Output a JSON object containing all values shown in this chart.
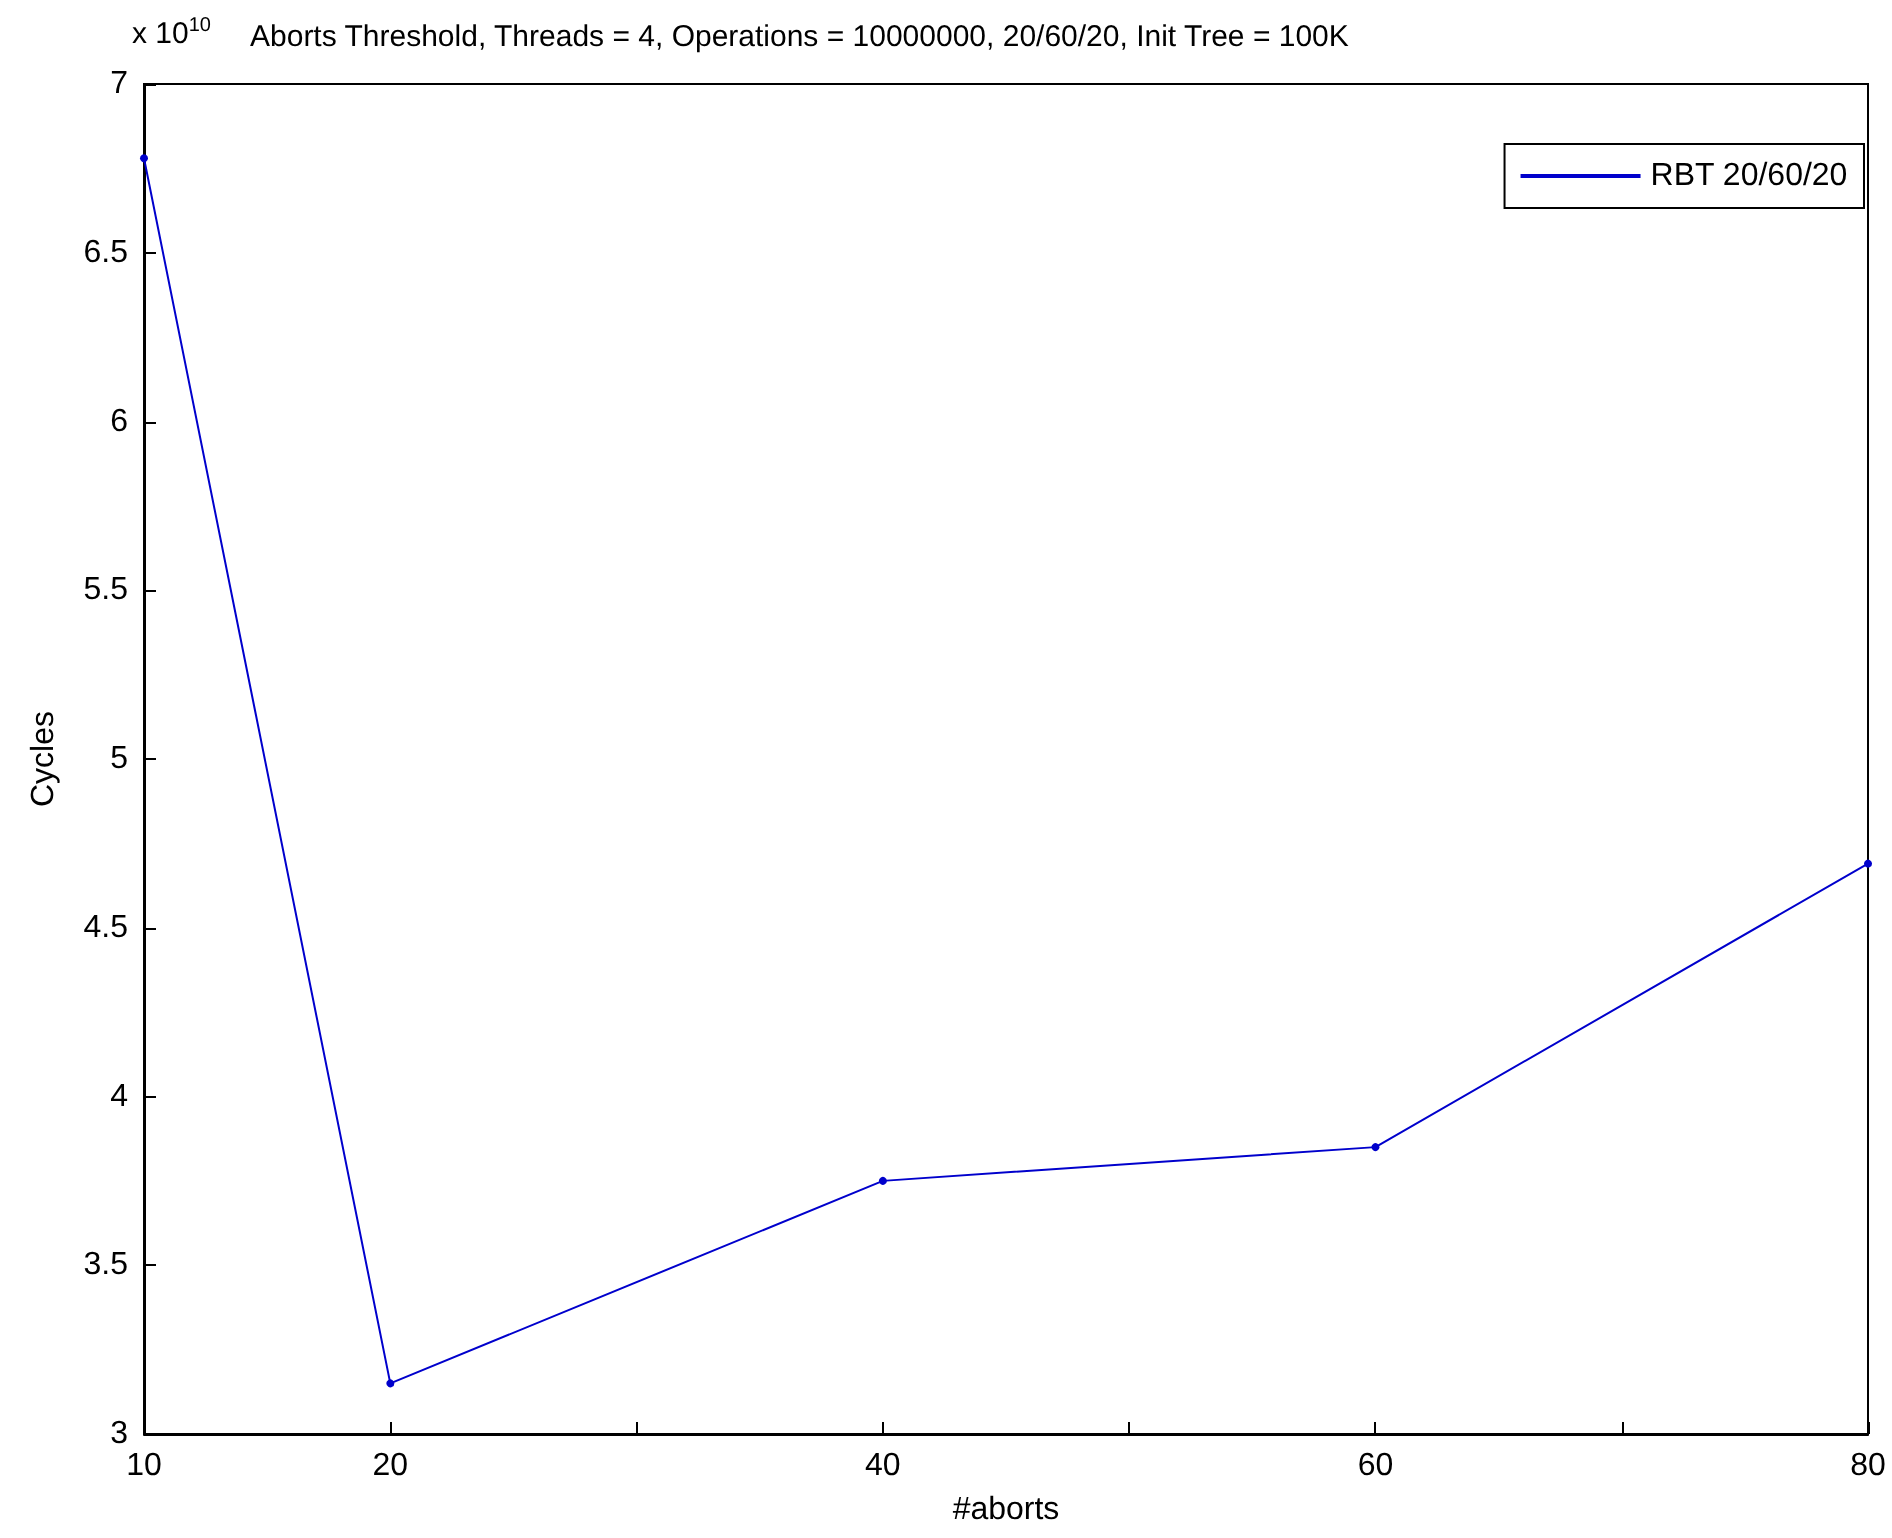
{
  "chart_data": {
    "type": "line",
    "title": "Aborts Threshold, Threads = 4, Operations = 10000000, 20/60/20, Init Tree = 100K",
    "xlabel": "#aborts",
    "ylabel": "Cycles",
    "annotations": [
      "x 10$^{10}$"
    ],
    "x": [
      10,
      20,
      40,
      60,
      80
    ],
    "series": [
      {
        "name": "RBT 20/60/20",
        "color": "#0000cc",
        "values": [
          6.78,
          3.15,
          3.75,
          3.85,
          4.69
        ]
      }
    ],
    "xlim": [
      10,
      80
    ],
    "xticks": [
      10,
      20,
      {
        "value": 30,
        "label": null
      },
      40,
      {
        "value": 50,
        "label": null
      },
      60,
      {
        "value": 70,
        "label": null
      },
      80
    ],
    "ylim": [
      3,
      7
    ],
    "yticks": [
      3,
      3.5,
      4,
      4.5,
      5,
      5.5,
      6,
      6.5,
      7
    ],
    "grid": false,
    "legend": "top right",
    "marker": "circle",
    "line_style": "solid"
  }
}
